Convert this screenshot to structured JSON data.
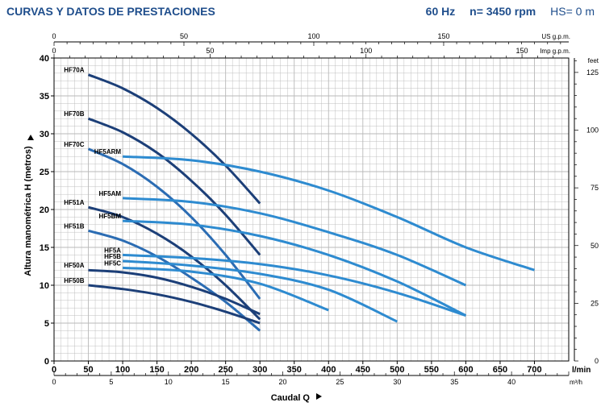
{
  "header": {
    "title": "CURVAS Y DATOS DE PRESTACIONES",
    "frequency": "60 Hz",
    "speed": "n= 3450 rpm",
    "hs": "HS= 0 m"
  },
  "colors": {
    "header_text": "#1f4e8c",
    "curve_dark": "#1c3f78",
    "curve_mid": "#2b6cb3",
    "curve_light": "#2e8bd0",
    "grid": "#b9b9b9",
    "axis": "#000000"
  },
  "chart_data": {
    "type": "line",
    "title": "",
    "xlabel": "Caudal Q",
    "ylabel": "Altura manométrica H (metros)",
    "xlim": [
      0,
      750
    ],
    "ylim": [
      0,
      40
    ],
    "grid": true,
    "axes": {
      "bottom_primary": {
        "unit": "l/min",
        "ticks": [
          "0",
          "50",
          "100",
          "150",
          "200",
          "250",
          "300",
          "350",
          "400",
          "450",
          "500",
          "550",
          "600",
          "650",
          "700"
        ]
      },
      "bottom_secondary": {
        "unit": "m³/h",
        "ticks": [
          "0",
          "5",
          "10",
          "15",
          "20",
          "25",
          "30",
          "35",
          "40"
        ]
      },
      "top_primary": {
        "unit": "US g.p.m.",
        "ticks": [
          "0",
          "50",
          "100",
          "150"
        ]
      },
      "top_secondary": {
        "unit": "Imp g.p.m.",
        "ticks": [
          "0",
          "50",
          "100",
          "150"
        ]
      },
      "left": {
        "unit": "metros",
        "ticks": [
          "0",
          "5",
          "10",
          "15",
          "20",
          "25",
          "30",
          "35",
          "40"
        ]
      },
      "right": {
        "unit": "feet",
        "ticks": [
          "0",
          "25",
          "50",
          "75",
          "100",
          "125"
        ]
      }
    },
    "series": [
      {
        "name": "HF70A",
        "tone": "dark",
        "x": [
          50,
          100,
          150,
          200,
          250,
          300
        ],
        "y": [
          37.8,
          36.0,
          33.4,
          30.0,
          25.8,
          20.8
        ]
      },
      {
        "name": "HF70B",
        "tone": "dark",
        "x": [
          50,
          100,
          150,
          200,
          250,
          300
        ],
        "y": [
          32.0,
          30.2,
          27.5,
          23.8,
          19.3,
          14.0
        ]
      },
      {
        "name": "HF70C",
        "tone": "mid",
        "x": [
          50,
          100,
          150,
          200,
          250,
          300
        ],
        "y": [
          28.0,
          26.0,
          23.0,
          19.0,
          14.0,
          8.2
        ]
      },
      {
        "name": "HF51A",
        "tone": "dark",
        "x": [
          50,
          100,
          150,
          200,
          250,
          300
        ],
        "y": [
          20.3,
          19.0,
          16.8,
          13.8,
          10.0,
          5.5
        ]
      },
      {
        "name": "HF51B",
        "tone": "mid",
        "x": [
          50,
          100,
          150,
          200,
          250,
          300
        ],
        "y": [
          17.2,
          15.9,
          13.8,
          11.0,
          7.8,
          4.0
        ]
      },
      {
        "name": "HF50A",
        "tone": "dark",
        "x": [
          50,
          100,
          150,
          200,
          250,
          300
        ],
        "y": [
          12.0,
          11.7,
          11.0,
          9.8,
          8.2,
          6.2
        ]
      },
      {
        "name": "HF50B",
        "tone": "dark",
        "x": [
          50,
          100,
          150,
          200,
          250,
          300
        ],
        "y": [
          10.0,
          9.5,
          8.8,
          7.8,
          6.5,
          5.0
        ]
      },
      {
        "name": "HF5ARM",
        "tone": "light",
        "x": [
          100,
          200,
          300,
          400,
          500,
          600,
          700
        ],
        "y": [
          27.0,
          26.5,
          25.0,
          22.5,
          19.0,
          15.0,
          12.0
        ]
      },
      {
        "name": "HF5AM",
        "tone": "light",
        "x": [
          100,
          200,
          300,
          400,
          500,
          600
        ],
        "y": [
          21.5,
          21.0,
          19.5,
          17.0,
          14.0,
          10.0
        ]
      },
      {
        "name": "HF5BM",
        "tone": "light",
        "x": [
          100,
          200,
          300,
          400,
          500,
          600
        ],
        "y": [
          18.5,
          18.0,
          16.5,
          14.0,
          10.5,
          6.0
        ]
      },
      {
        "name": "HF5A",
        "tone": "light",
        "x": [
          100,
          200,
          300,
          400,
          500,
          600
        ],
        "y": [
          14.0,
          13.6,
          12.8,
          11.3,
          9.0,
          6.0
        ]
      },
      {
        "name": "HF5B",
        "tone": "light",
        "x": [
          100,
          200,
          300,
          400,
          500
        ],
        "y": [
          13.2,
          12.6,
          11.5,
          9.4,
          5.2
        ]
      },
      {
        "name": "HF5C",
        "tone": "light",
        "x": [
          100,
          200,
          300,
          400
        ],
        "y": [
          12.3,
          11.8,
          10.2,
          6.7
        ]
      }
    ]
  }
}
